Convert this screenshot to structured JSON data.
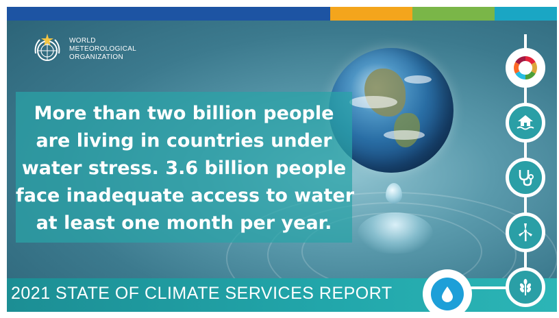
{
  "branding": {
    "org_lines": [
      "WORLD",
      "METEOROLOGICAL",
      "ORGANIZATION"
    ]
  },
  "headline": {
    "lines": [
      "More than two billion people",
      "are living in countries under",
      "water stress. 3.6 billion people",
      "face inadequate access to water",
      "at least one month per year."
    ]
  },
  "footer": {
    "report_title": "2021 STATE OF CLIMATE SERVICES REPORT"
  },
  "colors": {
    "stripe_blue": "#1d54a3",
    "stripe_orange": "#f4a51c",
    "stripe_green": "#7ab648",
    "stripe_cyan": "#1aa6c4",
    "teal": "#2aa3a8",
    "water_blue": "#1d9fd8"
  },
  "icons": {
    "timeline": [
      "sdg-wheel-icon",
      "house-flood-icon",
      "stethoscope-icon",
      "wind-turbine-icon",
      "wheat-icon"
    ],
    "active": "water-drop-icon"
  }
}
